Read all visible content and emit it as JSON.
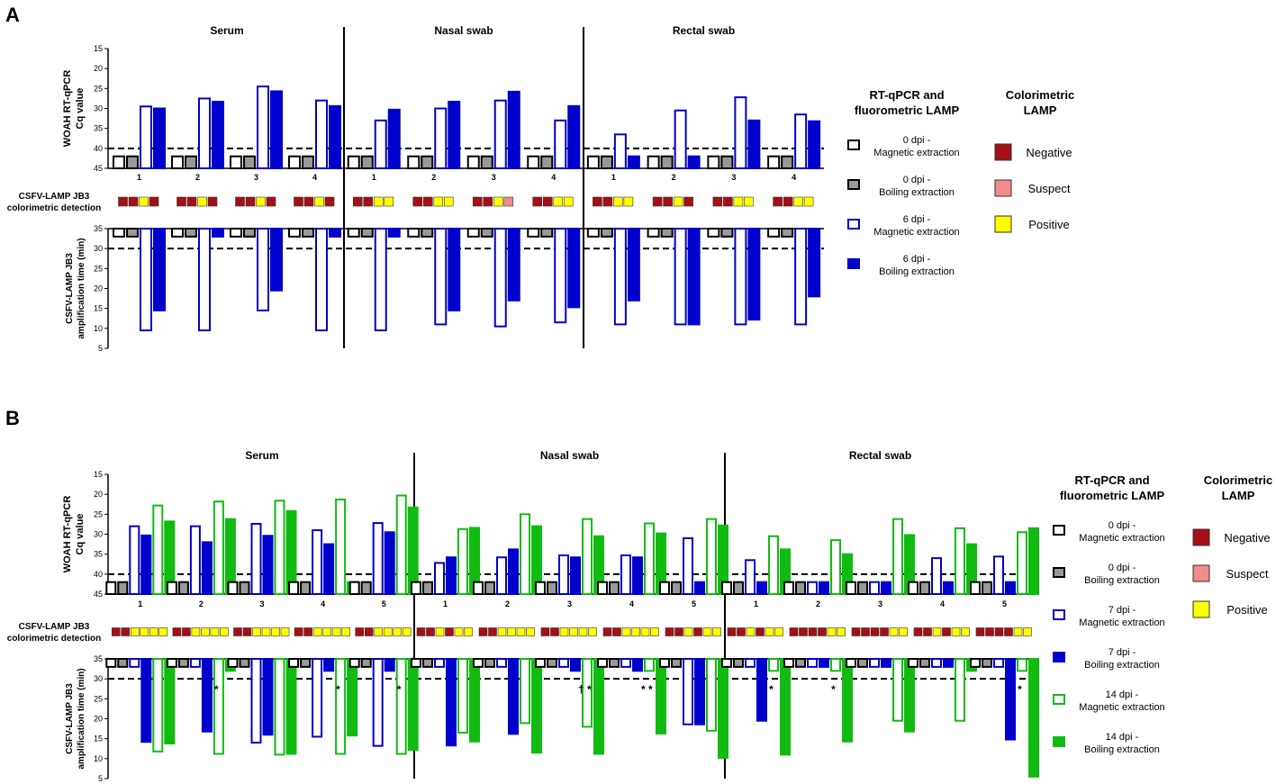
{
  "panels": [
    "A",
    "B"
  ],
  "sample_types": [
    "Serum",
    "Nasal swab",
    "Rectal swab"
  ],
  "axis_labels": {
    "cq_line1": "WOAH RT-qPCR",
    "cq_line2": "Cq value",
    "colorimetric_line1": "CSFV-LAMP JB3",
    "colorimetric_line2": "colorimetric detection",
    "amp_line1": "CSFV-LAMP JB3",
    "amp_line2": "amplification time (min)"
  },
  "cq_ticks": [
    "15",
    "20",
    "25",
    "30",
    "35",
    "40",
    "45"
  ],
  "amp_ticks": [
    "35",
    "30",
    "25",
    "20",
    "15",
    "10",
    "5"
  ],
  "legend": {
    "rt_title_line1": "RT-qPCR and",
    "rt_title_line2": "fluorometric LAMP",
    "color_title_line1": "Colorimetric",
    "color_title_line2": "LAMP",
    "colorimetric": [
      {
        "label": "Negative",
        "color": "#a50f15"
      },
      {
        "label": "Suspect",
        "color": "#f28b8b"
      },
      {
        "label": "Positive",
        "color": "#ffff00"
      }
    ],
    "panel_a_series": [
      {
        "line1": "0 dpi -",
        "line2": "Magnetic extraction"
      },
      {
        "line1": "0 dpi -",
        "line2": "Boiling extraction"
      },
      {
        "line1": "6 dpi -",
        "line2": "Magnetic extraction"
      },
      {
        "line1": "6 dpi -",
        "line2": "Boiling extraction"
      }
    ],
    "panel_b_series": [
      {
        "line1": "0 dpi -",
        "line2": "Magnetic extraction"
      },
      {
        "line1": "0 dpi -",
        "line2": "Boiling extraction"
      },
      {
        "line1": "7 dpi -",
        "line2": "Magnetic extraction"
      },
      {
        "line1": "7 dpi -",
        "line2": "Boiling extraction"
      },
      {
        "line1": "14 dpi -",
        "line2": "Magnetic extraction"
      },
      {
        "line1": "14 dpi -",
        "line2": "Boiling extraction"
      }
    ]
  },
  "chart_data": [
    {
      "panel": "A",
      "type": "bar",
      "title": "A",
      "animals": [
        "1",
        "2",
        "3",
        "4"
      ],
      "cq_ylim": [
        45,
        15
      ],
      "cq_threshold": 40,
      "amp_ylim": [
        35,
        5
      ],
      "amp_threshold": 30,
      "series_styles": [
        {
          "name": "0 dpi - Magnetic extraction",
          "fill": "#ffffff",
          "stroke": "#000000"
        },
        {
          "name": "0 dpi - Boiling extraction",
          "fill": "#999999",
          "stroke": "#000000"
        },
        {
          "name": "6 dpi - Magnetic extraction",
          "fill": "#ffffff",
          "stroke": "#0000cc"
        },
        {
          "name": "6 dpi - Boiling extraction",
          "fill": "#0000cc",
          "stroke": "#0000cc"
        }
      ],
      "groups": [
        {
          "sample": "Serum",
          "cq": [
            [
              42,
              42,
              29.5,
              30
            ],
            [
              42,
              42,
              27.5,
              28.3
            ],
            [
              42,
              42,
              24.5,
              25.7
            ],
            [
              42,
              42,
              28,
              29.4
            ]
          ],
          "colorimetric": [
            [
              "N",
              "N",
              "P",
              "N"
            ],
            [
              "N",
              "N",
              "P",
              "N"
            ],
            [
              "N",
              "N",
              "P",
              "N"
            ],
            [
              "N",
              "N",
              "P",
              "N"
            ]
          ],
          "amp": [
            [
              33,
              33,
              9.5,
              14.5
            ],
            [
              33,
              33,
              9.5,
              33
            ],
            [
              33,
              33,
              14.5,
              19.5
            ],
            [
              33,
              33,
              9.5,
              33
            ]
          ],
          "amp_marks": [
            "",
            "",
            "",
            ""
          ]
        },
        {
          "sample": "Nasal swab",
          "cq": [
            [
              42,
              42,
              33,
              30.3
            ],
            [
              42,
              42,
              30,
              28.3
            ],
            [
              42,
              42,
              28,
              25.8
            ],
            [
              42,
              42,
              33,
              29.4
            ]
          ],
          "colorimetric": [
            [
              "N",
              "N",
              "P",
              "P"
            ],
            [
              "N",
              "N",
              "P",
              "P"
            ],
            [
              "N",
              "N",
              "P",
              "S"
            ],
            [
              "N",
              "N",
              "P",
              "P"
            ]
          ],
          "amp": [
            [
              33,
              33,
              9.5,
              33
            ],
            [
              33,
              33,
              11,
              14.5
            ],
            [
              33,
              33,
              10.5,
              17
            ],
            [
              33,
              33,
              11.5,
              15.3
            ]
          ],
          "amp_marks": [
            "",
            "",
            "",
            ""
          ]
        },
        {
          "sample": "Rectal swab",
          "cq": [
            [
              42,
              42,
              36.5,
              42
            ],
            [
              42,
              42,
              30.5,
              42
            ],
            [
              42,
              42,
              27.2,
              33
            ],
            [
              42,
              42,
              31.5,
              33.2
            ]
          ],
          "colorimetric": [
            [
              "N",
              "N",
              "P",
              "P"
            ],
            [
              "N",
              "N",
              "P",
              "N"
            ],
            [
              "N",
              "N",
              "P",
              "P"
            ],
            [
              "N",
              "N",
              "P",
              "P"
            ]
          ],
          "amp": [
            [
              33,
              33,
              11,
              17
            ],
            [
              33,
              33,
              11,
              11
            ],
            [
              33,
              33,
              11,
              12.2
            ],
            [
              33,
              33,
              11,
              18
            ]
          ],
          "amp_marks": [
            "",
            "",
            "",
            ""
          ]
        }
      ]
    },
    {
      "panel": "B",
      "type": "bar",
      "title": "B",
      "animals": [
        "1",
        "2",
        "3",
        "4",
        "5"
      ],
      "cq_ylim": [
        45,
        15
      ],
      "cq_threshold": 40,
      "amp_ylim": [
        35,
        5
      ],
      "amp_threshold": 30,
      "series_styles": [
        {
          "name": "0 dpi - Magnetic extraction",
          "fill": "#ffffff",
          "stroke": "#000000"
        },
        {
          "name": "0 dpi - Boiling extraction",
          "fill": "#999999",
          "stroke": "#000000"
        },
        {
          "name": "7 dpi - Magnetic extraction",
          "fill": "#ffffff",
          "stroke": "#0000cc"
        },
        {
          "name": "7 dpi - Boiling extraction",
          "fill": "#0000cc",
          "stroke": "#0000cc"
        },
        {
          "name": "14 dpi - Magnetic extraction",
          "fill": "#ffffff",
          "stroke": "#11bb11"
        },
        {
          "name": "14 dpi - Boiling extraction",
          "fill": "#11bb11",
          "stroke": "#11bb11"
        }
      ],
      "groups": [
        {
          "sample": "Serum",
          "cq": [
            [
              42,
              42,
              28,
              30.3,
              22.8,
              26.8
            ],
            [
              42,
              42,
              28,
              32,
              21.8,
              26.2
            ],
            [
              42,
              42,
              27.4,
              30.4,
              21.6,
              24.2
            ],
            [
              42,
              42,
              29,
              32.5,
              21.3,
              42
            ],
            [
              42,
              42,
              27.2,
              29.5,
              20.3,
              23.3
            ]
          ],
          "colorimetric": [
            [
              "N",
              "N",
              "P",
              "P",
              "P",
              "P"
            ],
            [
              "N",
              "N",
              "P",
              "P",
              "P",
              "P"
            ],
            [
              "N",
              "N",
              "P",
              "P",
              "P",
              "P"
            ],
            [
              "N",
              "N",
              "P",
              "P",
              "P",
              "P"
            ],
            [
              "N",
              "N",
              "P",
              "P",
              "P",
              "P"
            ]
          ],
          "amp": [
            [
              33,
              33,
              33,
              14.2,
              11.8,
              13.8
            ],
            [
              33,
              33,
              33,
              16.8,
              11.2,
              32
            ],
            [
              33,
              33,
              14,
              16,
              11,
              11.2
            ],
            [
              33,
              33,
              15.5,
              32,
              11.2,
              15.8
            ],
            [
              33,
              33,
              13.2,
              32,
              11.2,
              12.2
            ]
          ],
          "amp_marks": [
            "",
            "*",
            "",
            "*",
            "*"
          ]
        },
        {
          "sample": "Nasal swab",
          "cq": [
            [
              42,
              42,
              37.2,
              35.8,
              28.7,
              28.4
            ],
            [
              42,
              42,
              35.8,
              33.8,
              25,
              28
            ],
            [
              42,
              42,
              35.3,
              35.8,
              26.2,
              30.5
            ],
            [
              42,
              42,
              35.3,
              35.8,
              27.3,
              29.8
            ],
            [
              42,
              42,
              31,
              42,
              26.2,
              27.8
            ]
          ],
          "colorimetric": [
            [
              "N",
              "N",
              "P",
              "N",
              "P",
              "P"
            ],
            [
              "N",
              "N",
              "P",
              "P",
              "P",
              "P"
            ],
            [
              "N",
              "N",
              "P",
              "P",
              "P",
              "P"
            ],
            [
              "N",
              "N",
              "P",
              "P",
              "P",
              "P"
            ],
            [
              "N",
              "N",
              "P",
              "N",
              "P",
              "P"
            ]
          ],
          "amp": [
            [
              33,
              33,
              33,
              13.3,
              16.5,
              14.3
            ],
            [
              33,
              33,
              33,
              16.2,
              18.9,
              11.5
            ],
            [
              33,
              33,
              33,
              32,
              18,
              11.2
            ],
            [
              33,
              33,
              33,
              32,
              32,
              16.3
            ],
            [
              33,
              33,
              18.6,
              18.6,
              17,
              10.2
            ]
          ],
          "amp_marks": [
            "",
            "",
            "† *",
            "* *",
            ""
          ]
        },
        {
          "sample": "Rectal swab",
          "cq": [
            [
              42,
              42,
              36.5,
              42,
              30.5,
              33.8
            ],
            [
              42,
              42,
              42,
              42,
              31.5,
              35
            ],
            [
              42,
              42,
              42,
              42,
              26.2,
              30.2
            ],
            [
              42,
              42,
              36,
              42,
              28.5,
              32.5
            ],
            [
              42,
              42,
              35.6,
              42,
              29.5,
              28.5
            ]
          ],
          "colorimetric": [
            [
              "N",
              "N",
              "P",
              "N",
              "P",
              "P"
            ],
            [
              "N",
              "N",
              "N",
              "N",
              "P",
              "P"
            ],
            [
              "N",
              "N",
              "N",
              "N",
              "P",
              "P"
            ],
            [
              "N",
              "N",
              "P",
              "N",
              "P",
              "P"
            ],
            [
              "N",
              "N",
              "N",
              "N",
              "P",
              "P"
            ]
          ],
          "amp": [
            [
              33,
              33,
              33,
              19.5,
              32,
              11
            ],
            [
              33,
              33,
              33,
              33,
              32,
              14.3
            ],
            [
              33,
              33,
              33,
              33,
              19.5,
              16.8
            ],
            [
              33,
              33,
              33,
              33,
              19.5,
              32
            ],
            [
              33,
              33,
              33,
              14.8,
              32,
              5.5
            ]
          ],
          "amp_marks": [
            "*",
            "*",
            "",
            "",
            "*"
          ]
        }
      ]
    }
  ]
}
